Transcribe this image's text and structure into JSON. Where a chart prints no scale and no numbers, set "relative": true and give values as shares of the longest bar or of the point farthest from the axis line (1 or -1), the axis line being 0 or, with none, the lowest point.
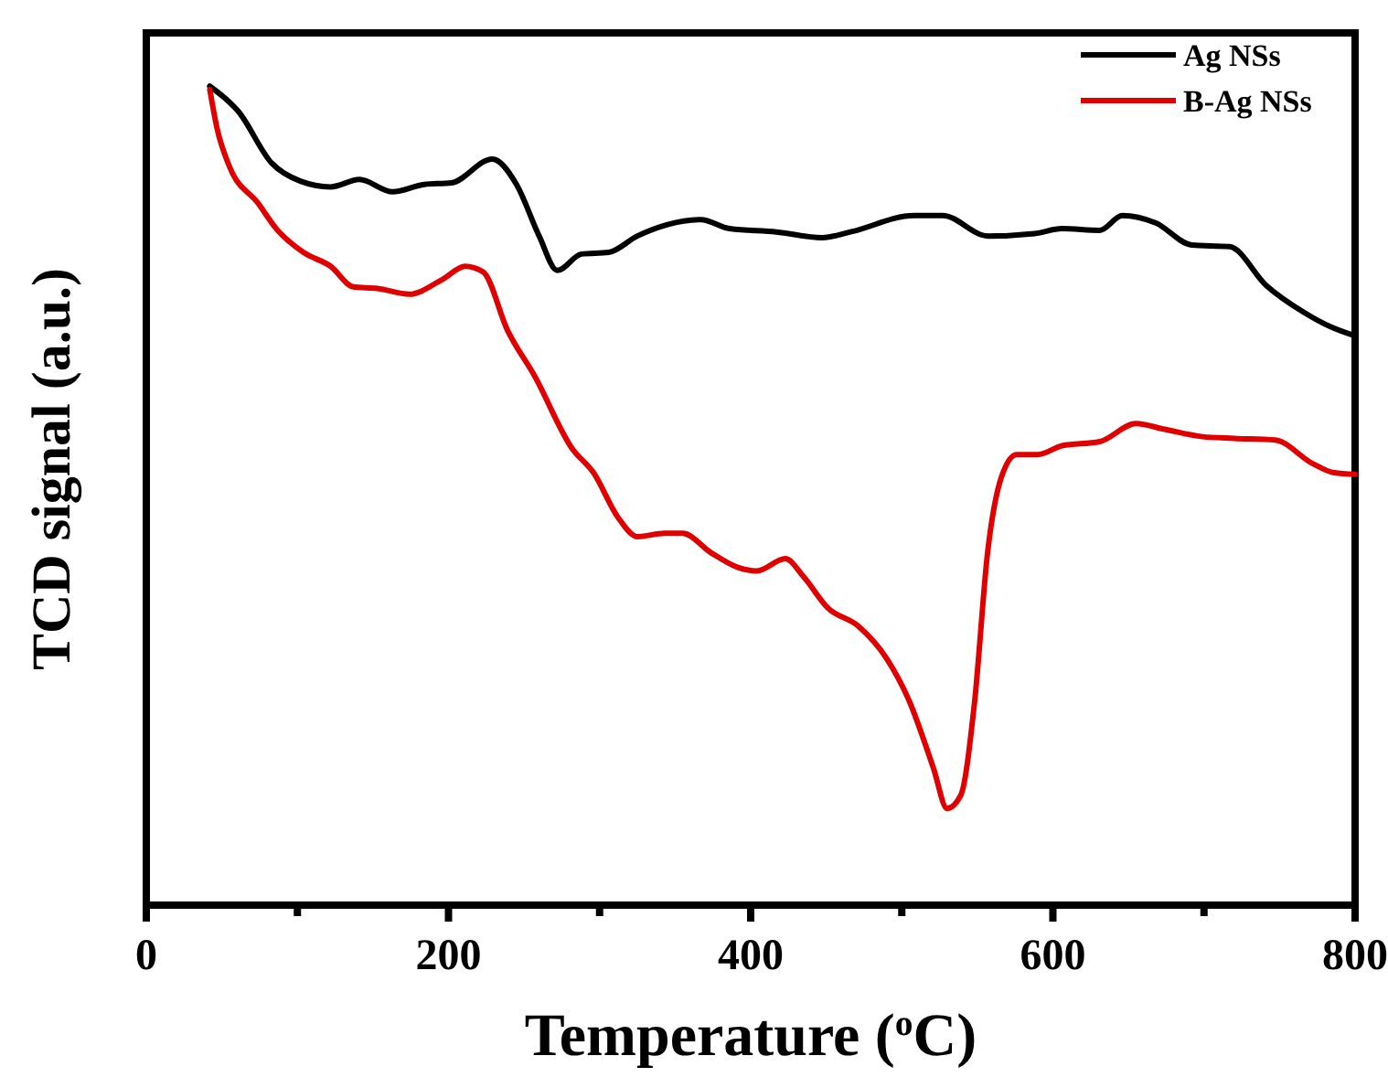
{
  "chart_data": {
    "type": "line",
    "relative": true,
    "xlabel": "Temperature ($^{o}$C)",
    "ylabel": "TCD signal (a.u.)",
    "xlim": [
      0,
      800
    ],
    "xticks": [
      0,
      {
        "value": 100,
        "label": null
      },
      200,
      {
        "value": 300,
        "label": null
      },
      400,
      {
        "value": 500,
        "label": null
      },
      600,
      {
        "value": 700,
        "label": null
      },
      800
    ],
    "legend": "top right",
    "marker": "none",
    "line_style": "solid",
    "series": [
      {
        "name": "Ag NSs",
        "color": "#000000",
        "x": [
          42,
          61,
          83,
          102,
          122,
          141,
          163,
          184,
          202,
          229,
          245,
          260,
          272,
          288,
          306,
          325,
          345,
          367,
          386,
          417,
          447,
          466,
          508,
          527,
          557,
          588,
          606,
          631,
          646,
          668,
          692,
          717,
          741,
          766,
          784,
          800
        ],
        "values": [
          1.0,
          0.969,
          0.906,
          0.884,
          0.877,
          0.886,
          0.871,
          0.88,
          0.882,
          0.911,
          0.88,
          0.817,
          0.775,
          0.795,
          0.797,
          0.817,
          0.831,
          0.837,
          0.826,
          0.822,
          0.815,
          0.822,
          0.842,
          0.842,
          0.817,
          0.82,
          0.826,
          0.824,
          0.842,
          0.833,
          0.806,
          0.804,
          0.757,
          0.724,
          0.706,
          0.695
        ]
      },
      {
        "name": "B-Ag NSs",
        "color": "#e00000",
        "x": [
          42,
          47,
          55,
          74,
          86,
          104,
          122,
          137,
          153,
          174,
          196,
          211,
          223,
          239,
          257,
          282,
          296,
          312,
          325,
          343,
          355,
          374,
          392,
          404,
          423,
          435,
          451,
          471,
          490,
          505,
          521,
          530,
          539,
          548,
          557,
          566,
          576,
          590,
          606,
          631,
          655,
          674,
          699,
          720,
          747,
          772,
          786,
          800
        ],
        "values": [
          0.996,
          0.947,
          0.902,
          0.857,
          0.826,
          0.797,
          0.78,
          0.755,
          0.753,
          0.746,
          0.764,
          0.78,
          0.773,
          0.702,
          0.646,
          0.557,
          0.528,
          0.474,
          0.45,
          0.454,
          0.454,
          0.43,
          0.412,
          0.408,
          0.423,
          0.401,
          0.363,
          0.341,
          0.301,
          0.249,
          0.167,
          0.118,
          0.134,
          0.245,
          0.434,
          0.523,
          0.55,
          0.55,
          0.561,
          0.566,
          0.588,
          0.581,
          0.572,
          0.57,
          0.568,
          0.539,
          0.528,
          0.526
        ]
      }
    ]
  }
}
